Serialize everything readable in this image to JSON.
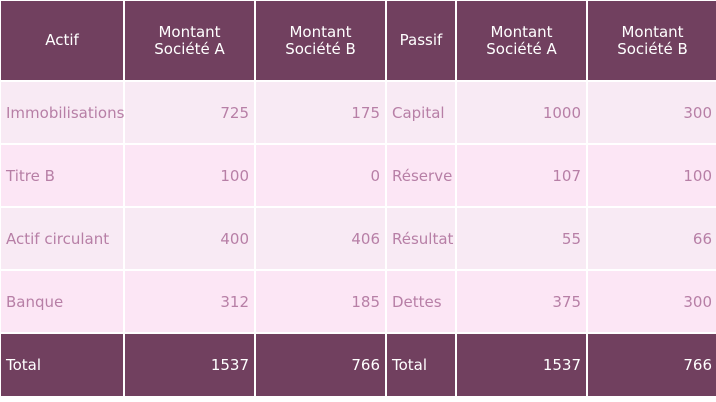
{
  "header": {
    "actif": "Actif",
    "montant_a_1": "Montant Société A",
    "montant_b_1": "Montant Société B",
    "passif": "Passif",
    "montant_a_2": "Montant Société A",
    "montant_b_2": "Montant Société B"
  },
  "rows": [
    {
      "actif": "Immobilisations",
      "actif_a": "725",
      "actif_b": "175",
      "passif": "Capital",
      "passif_a": "1000",
      "passif_b": "300"
    },
    {
      "actif": "Titre B",
      "actif_a": "100",
      "actif_b": "0",
      "passif": "Réserve",
      "passif_a": "107",
      "passif_b": "100"
    },
    {
      "actif": "Actif circulant",
      "actif_a": "400",
      "actif_b": "406",
      "passif": "Résultat",
      "passif_a": "55",
      "passif_b": "66"
    },
    {
      "actif": "Banque",
      "actif_a": "312",
      "actif_b": "185",
      "passif": "Dettes",
      "passif_a": "375",
      "passif_b": "300"
    }
  ],
  "total": {
    "actif": "Total",
    "actif_a": "1537",
    "actif_b": "766",
    "passif": "Total",
    "passif_a": "1537",
    "passif_b": "766"
  },
  "colors": {
    "header_bg": "#71405f",
    "row_odd_bg": "#f8eaf4",
    "row_even_bg": "#fce6f5",
    "row_text": "#b77fa6"
  }
}
